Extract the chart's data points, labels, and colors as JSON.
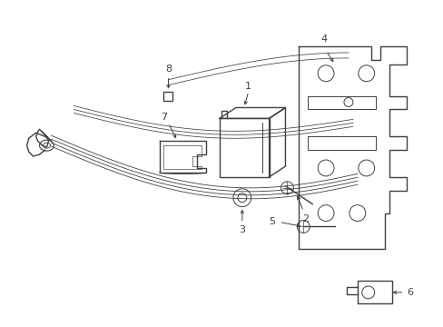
{
  "bg_color": "#ffffff",
  "line_color": "#404040",
  "label_color": "#000000",
  "fig_width": 4.89,
  "fig_height": 3.6,
  "dpi": 100
}
